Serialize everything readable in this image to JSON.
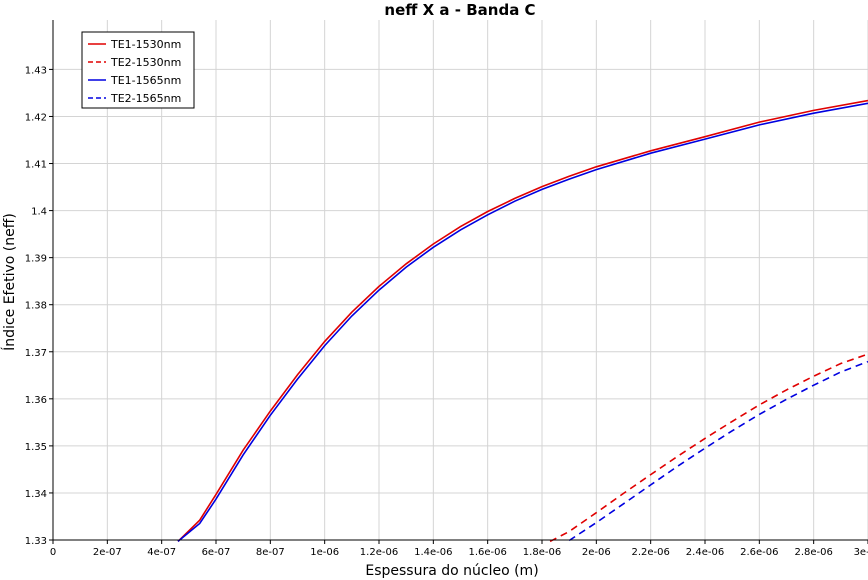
{
  "chart_data": {
    "type": "line",
    "title": "neff X a - Banda C",
    "xlabel": "Espessura do núcleo (m)",
    "ylabel": "Índice Efetivo (neff)",
    "xlim": [
      0,
      3e-06
    ],
    "ylim": [
      1.33,
      1.4405
    ],
    "grid": true,
    "legend_position": "top-left",
    "x_ticks": [
      0,
      2e-07,
      4e-07,
      6e-07,
      8e-07,
      1e-06,
      1.2e-06,
      1.4e-06,
      1.6e-06,
      1.8e-06,
      2e-06,
      2.2e-06,
      2.4e-06,
      2.6e-06,
      2.8e-06,
      3e-06
    ],
    "x_tick_labels": [
      "0",
      "2e-07",
      "4e-07",
      "6e-07",
      "8e-07",
      "1e-06",
      "1.2e-06",
      "1.4e-06",
      "1.6e-06",
      "1.8e-06",
      "2e-06",
      "2.2e-06",
      "2.4e-06",
      "2.6e-06",
      "2.8e-06",
      "3e-06"
    ],
    "y_ticks": [
      1.33,
      1.34,
      1.35,
      1.36,
      1.37,
      1.38,
      1.39,
      1.4,
      1.41,
      1.42,
      1.43
    ],
    "y_tick_labels": [
      "1.33",
      "1.34",
      "1.35",
      "1.36",
      "1.37",
      "1.38",
      "1.39",
      "1.4",
      "1.41",
      "1.42",
      "1.43"
    ],
    "series": [
      {
        "name": "TE1-1530nm",
        "color": "#e00000",
        "dash": "solid",
        "x": [
          4.6e-07,
          5.4e-07,
          6e-07,
          7e-07,
          8e-07,
          9e-07,
          1e-06,
          1.1e-06,
          1.2e-06,
          1.3e-06,
          1.4e-06,
          1.5e-06,
          1.6e-06,
          1.7e-06,
          1.8e-06,
          1.9e-06,
          2e-06,
          2.2e-06,
          2.4e-06,
          2.6e-06,
          2.8e-06,
          3e-06
        ],
        "y": [
          1.3297,
          1.3342,
          1.3397,
          1.3491,
          1.3574,
          1.3651,
          1.3722,
          1.3784,
          1.3839,
          1.3887,
          1.3929,
          1.3966,
          1.3998,
          1.4026,
          1.4051,
          1.4073,
          1.4093,
          1.4127,
          1.4157,
          1.4188,
          1.4213,
          1.4234
        ]
      },
      {
        "name": "TE2-1530nm",
        "color": "#e00000",
        "dash": "dashed",
        "x": [
          1.83e-06,
          1.9e-06,
          2e-06,
          2.1e-06,
          2.2e-06,
          2.3e-06,
          2.4e-06,
          2.5e-06,
          2.6e-06,
          2.7e-06,
          2.8e-06,
          2.9e-06,
          3e-06
        ],
        "y": [
          1.3297,
          1.3318,
          1.3358,
          1.3399,
          1.3439,
          1.3478,
          1.3516,
          1.3552,
          1.3587,
          1.3619,
          1.3648,
          1.3675,
          1.3695
        ]
      },
      {
        "name": "TE1-1565nm",
        "color": "#0000e0",
        "dash": "solid",
        "x": [
          4.6e-07,
          5.4e-07,
          6e-07,
          7e-07,
          8e-07,
          9e-07,
          1e-06,
          1.1e-06,
          1.2e-06,
          1.3e-06,
          1.4e-06,
          1.5e-06,
          1.6e-06,
          1.7e-06,
          1.8e-06,
          1.9e-06,
          2e-06,
          2.2e-06,
          2.4e-06,
          2.6e-06,
          2.8e-06,
          3e-06
        ],
        "y": [
          1.3297,
          1.3335,
          1.3387,
          1.3481,
          1.3565,
          1.3642,
          1.3713,
          1.3776,
          1.3831,
          1.388,
          1.3922,
          1.3959,
          1.3991,
          1.402,
          1.4045,
          1.4067,
          1.4087,
          1.4122,
          1.4152,
          1.4182,
          1.4207,
          1.4228
        ]
      },
      {
        "name": "TE2-1565nm",
        "color": "#0000e0",
        "dash": "dashed",
        "x": [
          1.9e-06,
          2e-06,
          2.1e-06,
          2.2e-06,
          2.3e-06,
          2.4e-06,
          2.5e-06,
          2.6e-06,
          2.7e-06,
          2.8e-06,
          2.9e-06,
          3e-06
        ],
        "y": [
          1.3299,
          1.3337,
          1.3377,
          1.3417,
          1.3457,
          1.3495,
          1.3532,
          1.3567,
          1.3599,
          1.3629,
          1.3657,
          1.3679
        ]
      }
    ]
  }
}
